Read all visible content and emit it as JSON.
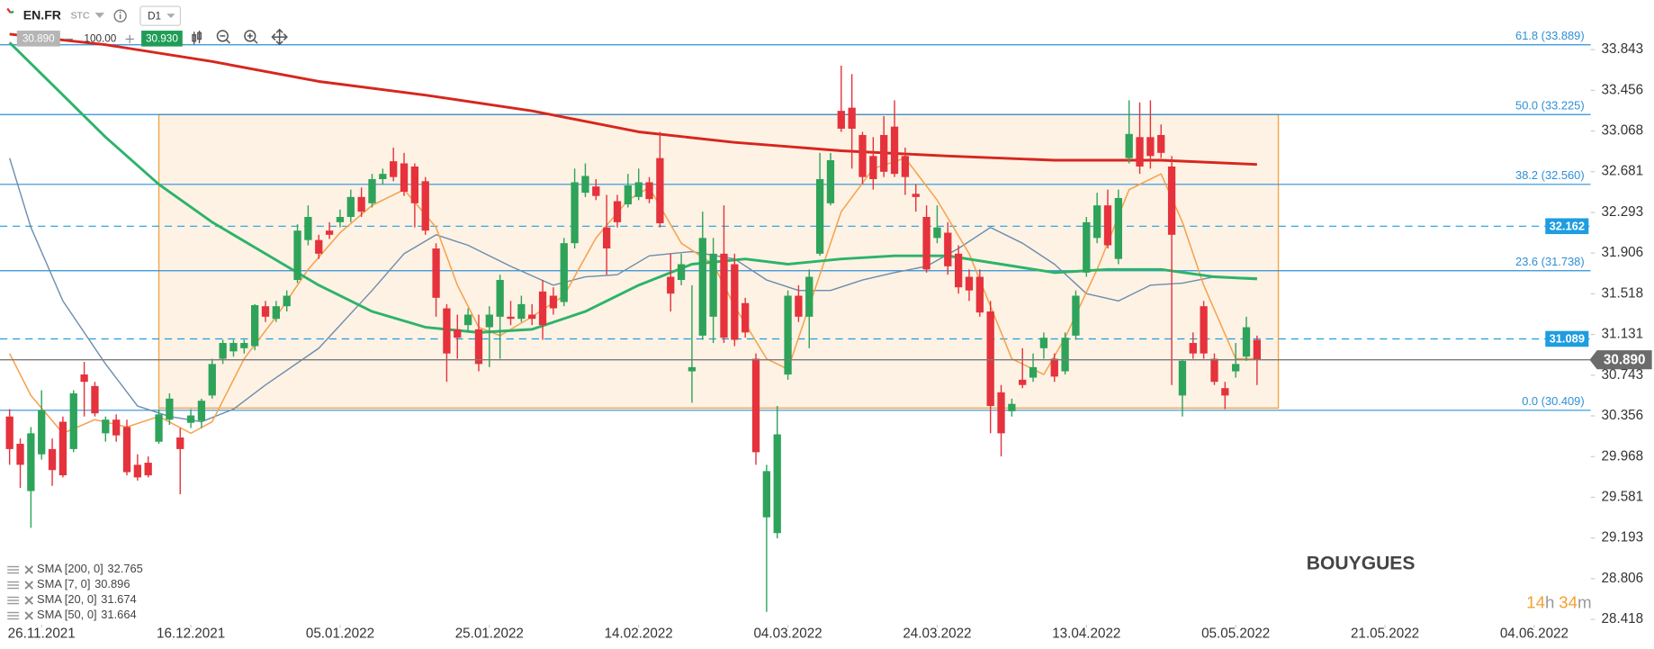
{
  "toolbar": {
    "symbol": "EN.FR",
    "source": "STC",
    "interval": "D1",
    "bid": "30.890",
    "volume": "100.00",
    "ask": "30.930"
  },
  "chart_data": {
    "type": "candlestick",
    "title": "BOUYGUES",
    "up_color": "#2ea35a",
    "down_color": "#e5323c",
    "x": [
      0,
      1,
      2,
      3,
      4,
      5,
      6,
      7,
      8,
      9,
      10,
      11,
      12,
      13,
      14,
      15,
      16,
      17,
      18,
      19,
      20,
      21,
      22,
      23,
      24,
      25,
      26,
      27,
      28,
      29,
      30,
      31,
      32,
      33,
      34,
      35,
      36,
      37,
      38,
      39,
      40,
      41,
      42,
      43,
      44,
      45,
      46,
      47,
      48,
      49,
      50,
      51,
      52,
      53,
      54,
      55,
      56,
      57,
      58,
      59,
      60,
      61,
      62,
      63,
      64,
      65,
      66,
      67,
      68,
      69,
      70,
      71,
      72,
      73,
      74,
      75,
      76,
      77,
      78,
      79,
      80,
      81,
      82,
      83,
      84,
      85,
      86,
      87,
      88,
      89,
      90,
      91,
      92,
      93,
      94,
      95,
      96,
      97,
      98,
      99,
      100,
      101,
      102,
      103,
      104,
      105,
      106,
      107,
      108,
      109,
      110,
      111,
      112,
      113,
      114,
      115,
      116,
      117
    ],
    "open": [
      30.35,
      30.09,
      29.64,
      29.99,
      30.04,
      30.3,
      30.04,
      30.75,
      30.64,
      30.19,
      30.32,
      30.25,
      29.89,
      29.91,
      30.11,
      30.32,
      30.15,
      30.29,
      30.31,
      30.55,
      30.9,
      30.97,
      31.0,
      31.02,
      31.4,
      31.28,
      31.4,
      31.65,
      32.03,
      32.03,
      32.12,
      32.2,
      32.25,
      32.44,
      32.38,
      32.61,
      32.78,
      32.76,
      32.73,
      32.59,
      31.95,
      31.38,
      31.18,
      31.22,
      31.18,
      31.2,
      31.3,
      31.3,
      31.28,
      31.32,
      31.54,
      31.5,
      31.44,
      32.0,
      32.48,
      32.54,
      32.15,
      32.4,
      32.37,
      32.44,
      32.58,
      32.81,
      31.68,
      31.65,
      30.78,
      31.12,
      31.3,
      31.9,
      31.8,
      31.43,
      30.9,
      29.39,
      29.24,
      30.75,
      31.5,
      31.3,
      31.9,
      32.38,
      33.26,
      33.29,
      33.03,
      32.83,
      33.03,
      33.11,
      32.83,
      32.47,
      32.25,
      32.05,
      32.1,
      31.9,
      31.68,
      31.68,
      31.35,
      30.58,
      30.4,
      30.7,
      30.72,
      31.0,
      30.9,
      30.78,
      31.12,
      31.72,
      32.05,
      32.36,
      31.85,
      32.81,
      33.01,
      33.01,
      33.03,
      32.73,
      30.55,
      31.05,
      31.4,
      30.9,
      30.62,
      30.78,
      30.92,
      31.08
    ],
    "high": [
      30.42,
      30.14,
      30.25,
      30.6,
      30.14,
      30.35,
      30.6,
      30.87,
      30.68,
      30.35,
      30.37,
      30.32,
      29.99,
      29.97,
      30.42,
      30.57,
      30.24,
      30.42,
      30.52,
      30.9,
      31.08,
      31.08,
      31.08,
      31.42,
      31.45,
      31.45,
      31.55,
      32.18,
      32.36,
      32.08,
      32.2,
      32.32,
      32.51,
      32.53,
      32.66,
      32.71,
      32.91,
      32.86,
      32.76,
      32.63,
      32.0,
      31.42,
      31.32,
      31.38,
      31.32,
      31.4,
      31.7,
      31.45,
      31.5,
      31.42,
      31.65,
      31.58,
      32.05,
      32.71,
      32.76,
      32.61,
      32.46,
      32.46,
      32.66,
      32.71,
      32.63,
      33.06,
      31.9,
      31.9,
      31.6,
      32.3,
      32.05,
      32.36,
      31.9,
      31.48,
      30.95,
      29.89,
      30.45,
      31.55,
      31.6,
      31.75,
      32.86,
      32.86,
      33.69,
      33.61,
      33.06,
      33.01,
      33.21,
      33.36,
      32.91,
      32.56,
      32.36,
      32.36,
      32.2,
      31.98,
      31.75,
      31.75,
      31.45,
      30.65,
      30.52,
      31.0,
      30.95,
      31.15,
      30.95,
      31.15,
      31.55,
      32.25,
      32.48,
      32.51,
      32.51,
      33.36,
      33.34,
      33.36,
      33.13,
      32.83,
      30.89,
      31.15,
      31.45,
      30.95,
      30.68,
      31.05,
      31.3,
      31.12
    ],
    "low": [
      29.89,
      29.67,
      29.29,
      29.94,
      29.69,
      29.77,
      30.01,
      30.35,
      30.35,
      30.11,
      30.11,
      29.79,
      29.74,
      29.77,
      30.09,
      30.27,
      29.61,
      30.24,
      30.24,
      30.52,
      30.85,
      30.92,
      30.95,
      30.98,
      31.25,
      31.25,
      31.35,
      31.62,
      31.98,
      31.85,
      32.04,
      32.15,
      32.2,
      32.25,
      32.34,
      32.56,
      32.59,
      32.45,
      32.15,
      32.08,
      31.3,
      30.68,
      30.9,
      31.15,
      30.78,
      30.82,
      30.9,
      31.22,
      31.25,
      31.22,
      31.08,
      31.32,
      31.4,
      31.95,
      32.44,
      32.41,
      31.7,
      32.15,
      32.34,
      32.41,
      32.38,
      32.15,
      31.35,
      31.6,
      30.48,
      31.08,
      31.05,
      31.05,
      31.02,
      31.1,
      29.89,
      28.49,
      29.19,
      30.7,
      31.25,
      31.0,
      31.88,
      32.36,
      33.06,
      32.71,
      32.56,
      32.51,
      32.63,
      32.63,
      32.46,
      32.3,
      31.72,
      32.0,
      31.7,
      31.52,
      31.45,
      31.3,
      30.19,
      29.97,
      30.35,
      30.62,
      30.68,
      30.9,
      30.68,
      30.75,
      31.08,
      31.68,
      32.0,
      31.95,
      31.8,
      32.76,
      32.66,
      32.71,
      32.81,
      30.65,
      30.35,
      30.9,
      30.9,
      30.65,
      30.42,
      30.72,
      30.88,
      30.65
    ],
    "close": [
      30.04,
      29.89,
      30.19,
      30.41,
      29.84,
      29.79,
      30.57,
      30.68,
      30.38,
      30.32,
      30.17,
      29.82,
      29.77,
      29.79,
      30.37,
      30.52,
      30.04,
      30.36,
      30.5,
      30.85,
      31.05,
      31.05,
      31.05,
      31.41,
      31.3,
      31.4,
      31.5,
      32.12,
      32.25,
      31.9,
      32.08,
      32.25,
      32.44,
      32.3,
      32.61,
      32.66,
      32.63,
      32.49,
      32.38,
      32.12,
      31.48,
      30.95,
      31.1,
      31.32,
      30.85,
      31.32,
      31.65,
      31.28,
      31.42,
      31.28,
      31.22,
      31.38,
      32.0,
      32.58,
      32.64,
      32.45,
      31.95,
      32.2,
      32.55,
      32.58,
      32.42,
      32.19,
      31.52,
      31.8,
      30.82,
      32.05,
      31.9,
      31.1,
      31.08,
      31.15,
      30.01,
      29.83,
      30.18,
      31.5,
      31.3,
      31.68,
      32.61,
      32.79,
      33.09,
      33.09,
      32.63,
      32.61,
      32.68,
      32.66,
      32.63,
      32.44,
      31.75,
      32.15,
      31.78,
      31.58,
      31.55,
      31.34,
      30.45,
      30.19,
      30.47,
      30.65,
      30.82,
      31.1,
      30.73,
      31.1,
      31.5,
      32.2,
      32.36,
      31.98,
      32.43,
      33.04,
      32.73,
      32.83,
      32.86,
      32.08,
      30.88,
      30.95,
      30.95,
      30.68,
      30.55,
      30.85,
      31.2,
      30.89
    ],
    "xlim": [
      -0.9,
      148
    ],
    "xticks": [
      {
        "value": 3,
        "label": "26.11.2021"
      },
      {
        "value": 17,
        "label": "16.12.2021"
      },
      {
        "value": 31,
        "label": "05.01.2022"
      },
      {
        "value": 45,
        "label": "25.01.2022"
      },
      {
        "value": 59,
        "label": "14.02.2022"
      },
      {
        "value": 73,
        "label": "04.03.2022"
      },
      {
        "value": 87,
        "label": "24.03.2022"
      },
      {
        "value": 101,
        "label": "13.04.2022"
      },
      {
        "value": 115,
        "label": "05.05.2022"
      },
      {
        "value": 129,
        "label": "21.05.2022"
      },
      {
        "value": 143,
        "label": "04.06.2022"
      }
    ],
    "ylim": [
      28.388,
      34.315
    ],
    "yticks": [
      33.843,
      33.456,
      33.068,
      32.681,
      32.293,
      31.906,
      31.518,
      31.131,
      30.743,
      30.356,
      29.968,
      29.581,
      29.193,
      28.806,
      28.418
    ],
    "overlays": [
      {
        "name": "SMA [200, 0]",
        "value": 32.765,
        "color": "#d7261e",
        "width": 2.5,
        "x": [
          0,
          9,
          19,
          29,
          39,
          49,
          59,
          68,
          78,
          88,
          98,
          108,
          117
        ],
        "values": [
          33.99,
          33.89,
          33.73,
          33.54,
          33.41,
          33.26,
          33.06,
          32.96,
          32.88,
          32.83,
          32.79,
          32.79,
          32.75
        ]
      },
      {
        "name": "SMA [7, 0]",
        "value": 30.896,
        "color": "#f5a24c",
        "width": 1.3,
        "x": [
          0,
          2,
          5,
          8,
          11,
          14,
          17,
          19,
          22,
          25,
          28,
          31,
          34,
          37,
          40,
          42,
          44,
          46,
          49,
          52,
          55,
          58,
          60,
          63,
          66,
          68,
          71,
          73,
          75,
          78,
          81,
          84,
          87,
          90,
          92,
          94,
          97,
          99,
          102,
          105,
          108,
          110,
          112,
          115,
          117
        ],
        "values": [
          30.95,
          30.55,
          30.19,
          30.32,
          30.25,
          30.35,
          30.19,
          30.3,
          30.9,
          31.3,
          31.75,
          32.1,
          32.36,
          32.51,
          32.15,
          31.6,
          31.2,
          31.12,
          31.3,
          31.5,
          32.05,
          32.41,
          32.53,
          32.0,
          31.8,
          31.4,
          30.9,
          30.8,
          31.4,
          32.3,
          32.71,
          32.81,
          32.41,
          31.9,
          31.4,
          30.9,
          30.75,
          31.1,
          31.75,
          32.51,
          32.66,
          32.2,
          31.6,
          30.9,
          30.9
        ]
      },
      {
        "name": "SMA [20, 0]",
        "value": 31.674,
        "color": "#6c8cae",
        "width": 1.2,
        "x": [
          0,
          2,
          5,
          9,
          12,
          15,
          18,
          21,
          24,
          29,
          34,
          37,
          40,
          43,
          47,
          51,
          54,
          57,
          60,
          64,
          68,
          71,
          74,
          77,
          80,
          83,
          86,
          89,
          92,
          95,
          98,
          101,
          104,
          107,
          110,
          113,
          117
        ],
        "values": [
          32.81,
          32.15,
          31.45,
          30.85,
          30.45,
          30.35,
          30.3,
          30.42,
          30.65,
          31.0,
          31.55,
          31.9,
          32.08,
          31.98,
          31.78,
          31.6,
          31.68,
          31.7,
          31.88,
          31.92,
          31.85,
          31.65,
          31.55,
          31.55,
          31.65,
          31.72,
          31.78,
          31.95,
          32.15,
          32.0,
          31.8,
          31.52,
          31.45,
          31.6,
          31.62,
          31.68,
          31.67
        ]
      },
      {
        "name": "SMA [50, 0]",
        "value": 31.664,
        "color": "#2db36a",
        "width": 2.5,
        "x": [
          0,
          4,
          9,
          14,
          19,
          24,
          29,
          34,
          39,
          44,
          49,
          54,
          59,
          64,
          69,
          73,
          78,
          83,
          88,
          93,
          98,
          103,
          108,
          113,
          117
        ],
        "values": [
          33.91,
          33.51,
          33.01,
          32.56,
          32.2,
          31.9,
          31.6,
          31.35,
          31.2,
          31.15,
          31.18,
          31.35,
          31.6,
          31.8,
          31.85,
          31.8,
          31.85,
          31.88,
          31.88,
          31.8,
          31.72,
          31.75,
          31.75,
          31.68,
          31.66
        ]
      }
    ],
    "fibonacci": [
      {
        "value": 33.889,
        "label": "61.8 (33.889)"
      },
      {
        "value": 33.225,
        "label": "50.0 (33.225)"
      },
      {
        "value": 32.56,
        "label": "38.2 (32.560)"
      },
      {
        "value": 31.738,
        "label": "23.6 (31.738)"
      },
      {
        "value": 30.409,
        "label": "0.0 (30.409)"
      }
    ],
    "fib_color": "#2f8fd6",
    "levels": [
      32.162,
      31.089
    ],
    "level_color": "#1e9de0",
    "last_price": {
      "value": 30.89,
      "label": "30.890"
    },
    "box": {
      "x": [
        14,
        119
      ],
      "y": [
        30.43,
        33.225
      ],
      "color": "#f2a54a"
    },
    "countdown": [
      "14",
      "h",
      "34",
      "m"
    ]
  }
}
